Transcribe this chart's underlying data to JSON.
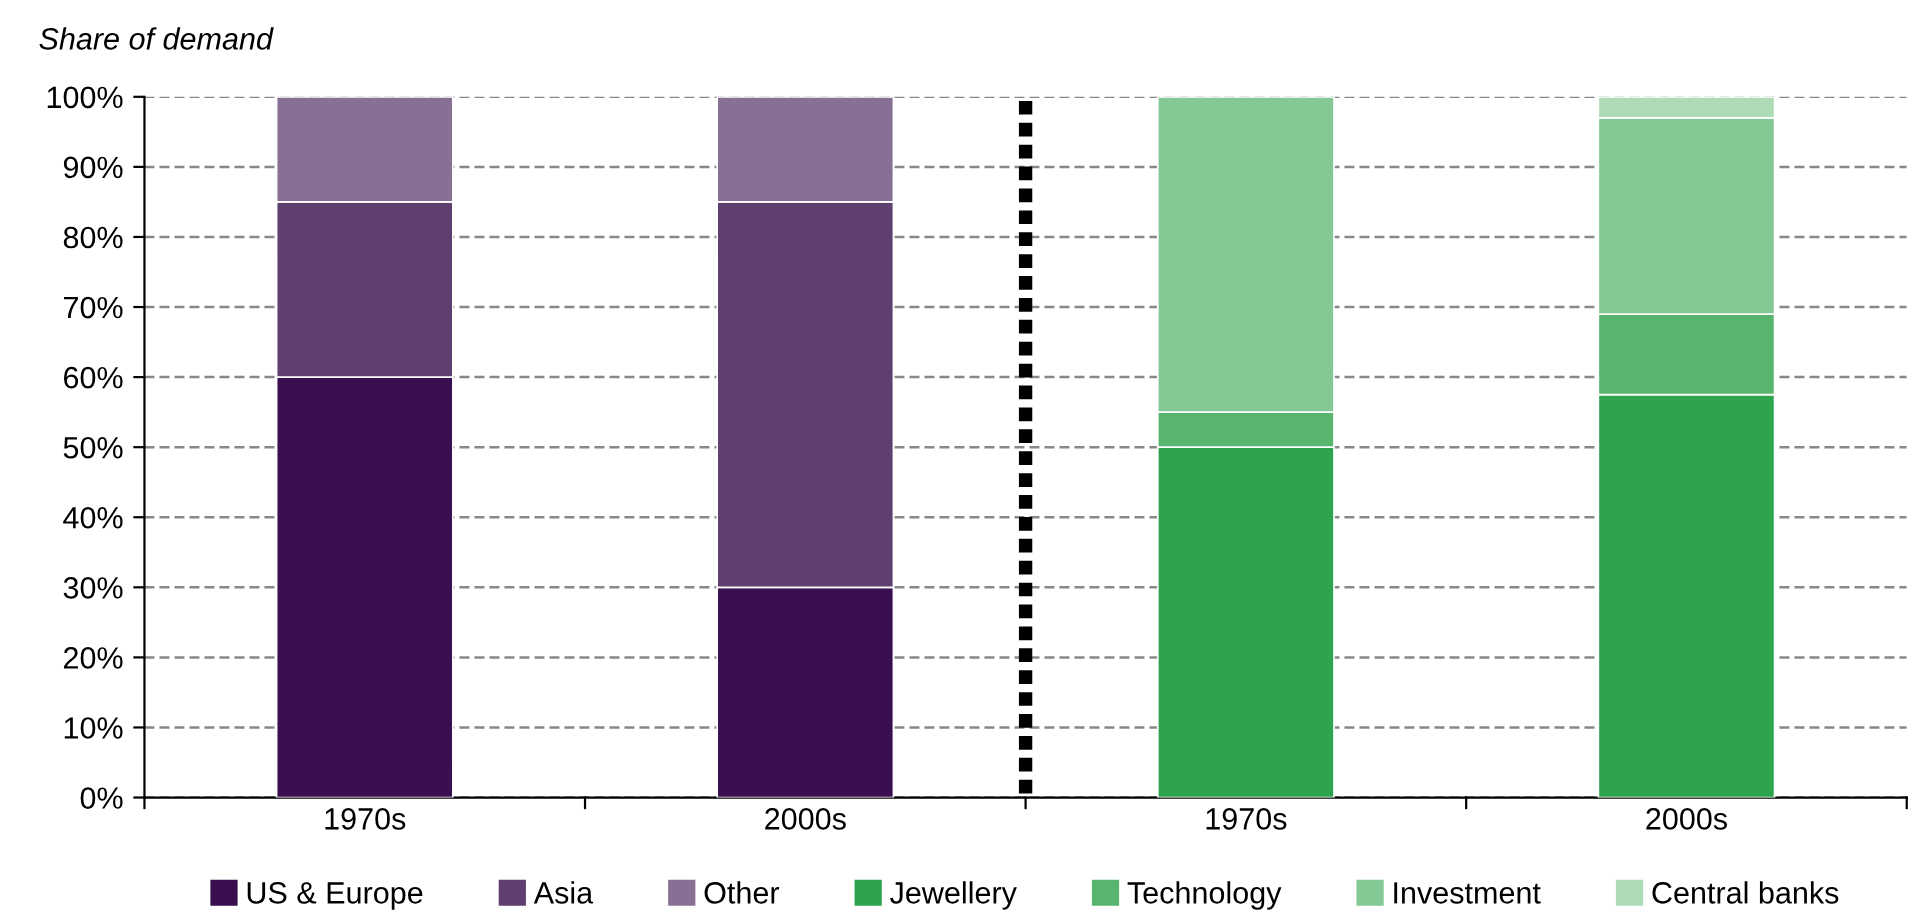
{
  "chart_data": {
    "type": "bar",
    "stacked": true,
    "ylabel": "Share of demand",
    "categories": [
      "1970s",
      "2000s",
      "1970s",
      "2000s"
    ],
    "series": [
      {
        "name": "US & Europe",
        "color": "#3a0f4f",
        "values": [
          60,
          30,
          null,
          null
        ]
      },
      {
        "name": "Asia",
        "color": "#5e3f6f",
        "values": [
          25,
          55,
          null,
          null
        ]
      },
      {
        "name": "Other",
        "color": "#877094",
        "values": [
          15,
          15,
          null,
          null
        ]
      },
      {
        "name": "Jewellery",
        "color": "#2fa44f",
        "values": [
          null,
          null,
          50,
          57.5
        ]
      },
      {
        "name": "Technology",
        "color": "#58b56e",
        "values": [
          null,
          null,
          5,
          11.5
        ]
      },
      {
        "name": "Investment",
        "color": "#83c895",
        "values": [
          null,
          null,
          45,
          28
        ]
      },
      {
        "name": "Central banks",
        "color": "#acdbb5",
        "values": [
          null,
          null,
          null,
          3
        ]
      }
    ],
    "ylim": [
      0,
      100
    ],
    "yticks": [
      {
        "value": 0,
        "label": "0%"
      },
      {
        "value": 10,
        "label": "10%"
      },
      {
        "value": 20,
        "label": "20%"
      },
      {
        "value": 30,
        "label": "30%"
      },
      {
        "value": 40,
        "label": "40%"
      },
      {
        "value": 50,
        "label": "50%"
      },
      {
        "value": 60,
        "label": "60%"
      },
      {
        "value": 70,
        "label": "70%"
      },
      {
        "value": 80,
        "label": "80%"
      },
      {
        "value": 90,
        "label": "90%"
      },
      {
        "value": 100,
        "label": "100%"
      }
    ],
    "grid": "y",
    "legend": "bottom"
  }
}
